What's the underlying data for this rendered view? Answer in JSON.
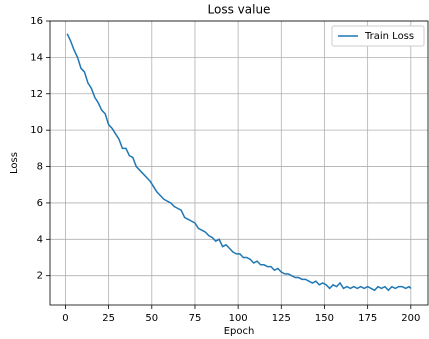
{
  "chart_data": {
    "type": "line",
    "title": "Loss value",
    "x_label": "Epoch",
    "y_label": "Loss",
    "x": [
      1,
      3,
      5,
      7,
      9,
      11,
      13,
      15,
      17,
      19,
      21,
      23,
      25,
      27,
      29,
      31,
      33,
      35,
      37,
      39,
      41,
      43,
      45,
      47,
      49,
      51,
      53,
      55,
      57,
      59,
      61,
      63,
      65,
      67,
      69,
      71,
      73,
      75,
      77,
      79,
      81,
      83,
      85,
      87,
      89,
      91,
      93,
      95,
      97,
      99,
      101,
      103,
      105,
      107,
      109,
      111,
      113,
      115,
      117,
      119,
      121,
      123,
      125,
      127,
      129,
      131,
      133,
      135,
      137,
      139,
      141,
      143,
      145,
      147,
      149,
      151,
      153,
      155,
      157,
      159,
      161,
      163,
      165,
      167,
      169,
      171,
      173,
      175,
      177,
      179,
      181,
      183,
      185,
      187,
      189,
      191,
      193,
      195,
      197,
      199,
      200
    ],
    "series": [
      {
        "name": "Train Loss",
        "color": "#1f77b4",
        "values": [
          15.3,
          14.9,
          14.4,
          14.0,
          13.4,
          13.2,
          12.6,
          12.3,
          11.8,
          11.5,
          11.1,
          10.9,
          10.3,
          10.1,
          9.8,
          9.5,
          9.0,
          9.0,
          8.6,
          8.5,
          8.0,
          7.8,
          7.6,
          7.4,
          7.2,
          6.9,
          6.6,
          6.4,
          6.2,
          6.1,
          6.0,
          5.8,
          5.7,
          5.6,
          5.2,
          5.1,
          5.0,
          4.9,
          4.6,
          4.5,
          4.4,
          4.2,
          4.1,
          3.9,
          4.0,
          3.6,
          3.7,
          3.5,
          3.3,
          3.2,
          3.2,
          3.0,
          3.0,
          2.9,
          2.7,
          2.8,
          2.6,
          2.6,
          2.5,
          2.5,
          2.3,
          2.4,
          2.2,
          2.1,
          2.1,
          2.0,
          1.9,
          1.9,
          1.8,
          1.8,
          1.7,
          1.6,
          1.7,
          1.5,
          1.6,
          1.5,
          1.3,
          1.5,
          1.4,
          1.6,
          1.3,
          1.4,
          1.3,
          1.4,
          1.3,
          1.4,
          1.3,
          1.4,
          1.3,
          1.2,
          1.4,
          1.3,
          1.4,
          1.2,
          1.4,
          1.3,
          1.4,
          1.4,
          1.3,
          1.4,
          1.3
        ]
      }
    ],
    "xlim": [
      -8.95,
      209.95
    ],
    "ylim": [
      0.39,
      16.0
    ],
    "xticks": [
      0,
      25,
      50,
      75,
      100,
      125,
      150,
      175,
      200
    ],
    "yticks": [
      2,
      4,
      6,
      8,
      10,
      12,
      14,
      16
    ],
    "grid": true,
    "legend": "upper right"
  }
}
